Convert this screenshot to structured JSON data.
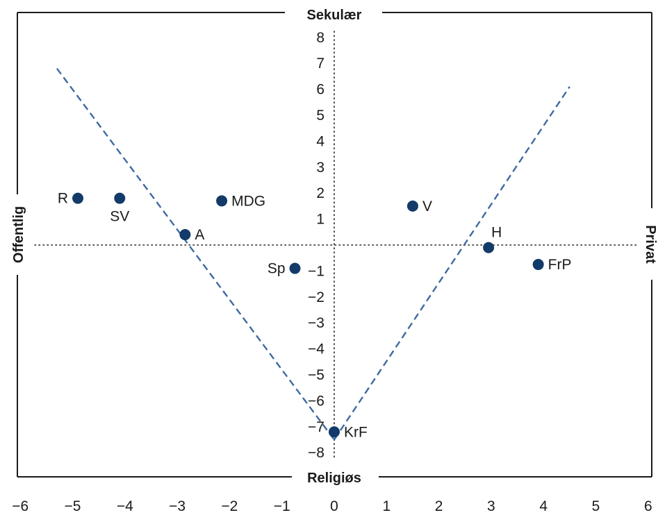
{
  "chart_data": {
    "type": "scatter",
    "title": "",
    "xlim": [
      -6,
      6
    ],
    "ylim": [
      -8,
      8
    ],
    "x_ticks": [
      -6,
      -5,
      -4,
      -3,
      -2,
      -1,
      0,
      1,
      2,
      3,
      4,
      5,
      6
    ],
    "y_ticks": [
      -8,
      -7,
      -6,
      -5,
      -4,
      -3,
      -2,
      -1,
      1,
      2,
      3,
      4,
      5,
      6,
      7,
      8
    ],
    "axis_labels": {
      "top": "Sekulær",
      "bottom": "Religiøs",
      "left": "Offentlig",
      "right": "Privat"
    },
    "colors": {
      "point": "#123b6a",
      "dashed_line": "#3d6aa0",
      "frame": "#1a1a1a"
    },
    "grid": false,
    "reference_lines": [
      {
        "style": "dotted",
        "orientation": "horizontal",
        "y": 0
      },
      {
        "style": "dotted",
        "orientation": "vertical",
        "x": 0
      }
    ],
    "trend_lines": [
      {
        "style": "dashed",
        "points": [
          [
            -5.3,
            6.8
          ],
          [
            0,
            -7.5
          ]
        ]
      },
      {
        "style": "dashed",
        "points": [
          [
            0,
            -7.5
          ],
          [
            4.5,
            6.1
          ]
        ]
      }
    ],
    "points": [
      {
        "label": "R",
        "x": -4.9,
        "y": 1.8,
        "label_pos": "left"
      },
      {
        "label": "SV",
        "x": -4.1,
        "y": 1.8,
        "label_pos": "below"
      },
      {
        "label": "MDG",
        "x": -2.15,
        "y": 1.7,
        "label_pos": "right"
      },
      {
        "label": "A",
        "x": -2.85,
        "y": 0.4,
        "label_pos": "right"
      },
      {
        "label": "Sp",
        "x": -0.75,
        "y": -0.9,
        "label_pos": "left"
      },
      {
        "label": "V",
        "x": 1.5,
        "y": 1.5,
        "label_pos": "right"
      },
      {
        "label": "H",
        "x": 2.95,
        "y": -0.1,
        "label_pos": "above-right"
      },
      {
        "label": "FrP",
        "x": 3.9,
        "y": -0.75,
        "label_pos": "right"
      },
      {
        "label": "KrF",
        "x": 0.0,
        "y": -7.2,
        "label_pos": "right"
      }
    ]
  }
}
